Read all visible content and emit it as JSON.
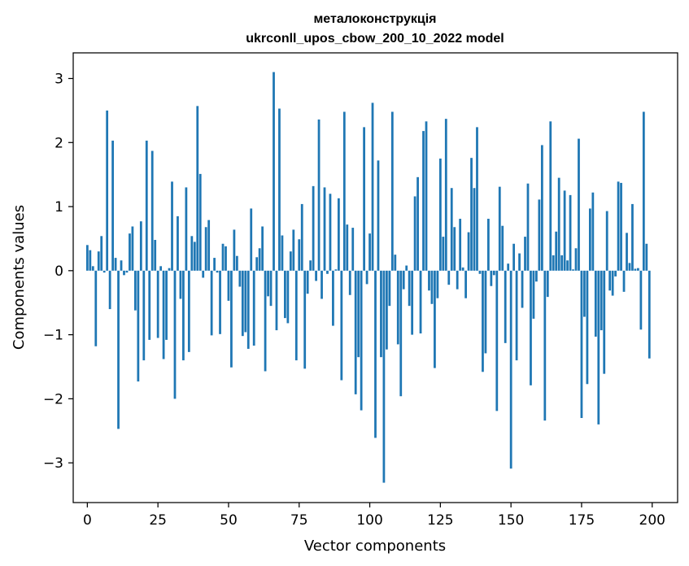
{
  "chart_data": {
    "type": "bar",
    "title": "металоконструкція",
    "subtitle": "ukrconll_upos_cbow_200_10_2022 model",
    "xlabel": "Vector components",
    "ylabel": "Components values",
    "xlim": [
      -5,
      209
    ],
    "ylim": [
      -3.62,
      3.4
    ],
    "xticks": [
      0,
      25,
      50,
      75,
      100,
      125,
      150,
      175,
      200
    ],
    "yticks": [
      -3,
      -2,
      -1,
      0,
      1,
      2,
      3
    ],
    "grid": false,
    "bar_color": "#1f77b4",
    "x": [
      0,
      1,
      2,
      3,
      4,
      5,
      6,
      7,
      8,
      9,
      10,
      11,
      12,
      13,
      14,
      15,
      16,
      17,
      18,
      19,
      20,
      21,
      22,
      23,
      24,
      25,
      26,
      27,
      28,
      29,
      30,
      31,
      32,
      33,
      34,
      35,
      36,
      37,
      38,
      39,
      40,
      41,
      42,
      43,
      44,
      45,
      46,
      47,
      48,
      49,
      50,
      51,
      52,
      53,
      54,
      55,
      56,
      57,
      58,
      59,
      60,
      61,
      62,
      63,
      64,
      65,
      66,
      67,
      68,
      69,
      70,
      71,
      72,
      73,
      74,
      75,
      76,
      77,
      78,
      79,
      80,
      81,
      82,
      83,
      84,
      85,
      86,
      87,
      88,
      89,
      90,
      91,
      92,
      93,
      94,
      95,
      96,
      97,
      98,
      99,
      100,
      101,
      102,
      103,
      104,
      105,
      106,
      107,
      108,
      109,
      110,
      111,
      112,
      113,
      114,
      115,
      116,
      117,
      118,
      119,
      120,
      121,
      122,
      123,
      124,
      125,
      126,
      127,
      128,
      129,
      130,
      131,
      132,
      133,
      134,
      135,
      136,
      137,
      138,
      139,
      140,
      141,
      142,
      143,
      144,
      145,
      146,
      147,
      148,
      149,
      150,
      151,
      152,
      153,
      154,
      155,
      156,
      157,
      158,
      159,
      160,
      161,
      162,
      163,
      164,
      165,
      166,
      167,
      168,
      169,
      170,
      171,
      172,
      173,
      174,
      175,
      176,
      177,
      178,
      179,
      180,
      181,
      182,
      183,
      184,
      185,
      186,
      187,
      188,
      189,
      190,
      191,
      192,
      193,
      194,
      195,
      196,
      197,
      198,
      199
    ],
    "values": [
      0.4,
      0.32,
      0.07,
      -1.18,
      0.3,
      0.54,
      -0.03,
      2.5,
      -0.6,
      2.03,
      0.2,
      -2.47,
      0.16,
      -0.07,
      -0.03,
      0.58,
      0.69,
      -0.62,
      -1.73,
      0.77,
      -1.4,
      2.03,
      -1.08,
      1.87,
      0.48,
      -1.05,
      0.07,
      -1.38,
      -1.08,
      0.04,
      1.39,
      -2.0,
      0.85,
      -0.44,
      -1.4,
      1.3,
      -1.27,
      0.54,
      0.45,
      2.57,
      1.51,
      -0.11,
      0.68,
      0.79,
      -1.01,
      0.2,
      -0.03,
      -0.99,
      0.42,
      0.38,
      -0.47,
      -1.51,
      0.64,
      0.23,
      -0.25,
      -1.02,
      -0.96,
      -1.22,
      0.97,
      -1.17,
      0.21,
      0.35,
      0.69,
      -1.57,
      -0.4,
      -0.55,
      3.1,
      -0.93,
      2.53,
      0.55,
      -0.74,
      -0.82,
      0.3,
      0.64,
      -1.4,
      0.49,
      1.04,
      -1.53,
      -0.36,
      0.16,
      1.32,
      -0.16,
      2.36,
      -0.44,
      1.3,
      -0.05,
      1.2,
      -0.86,
      0.02,
      1.13,
      -1.71,
      2.48,
      0.72,
      -0.38,
      0.67,
      -1.93,
      -1.35,
      -2.18,
      2.24,
      -0.21,
      0.58,
      2.62,
      -2.61,
      1.72,
      -1.35,
      -3.31,
      -1.23,
      -0.55,
      2.48,
      0.25,
      -1.15,
      -1.96,
      -0.29,
      0.08,
      -0.55,
      -1.0,
      1.16,
      1.46,
      -0.98,
      2.18,
      2.33,
      -0.31,
      -0.52,
      -1.52,
      -0.43,
      1.75,
      0.53,
      2.37,
      -0.22,
      1.29,
      0.68,
      -0.29,
      0.81,
      0.05,
      -0.43,
      0.6,
      1.76,
      1.29,
      2.24,
      -0.05,
      -1.58,
      -1.29,
      0.81,
      -0.24,
      -0.07,
      -2.19,
      1.31,
      0.7,
      -1.13,
      0.11,
      -3.09,
      0.42,
      -1.4,
      0.27,
      -0.58,
      0.53,
      1.36,
      -1.79,
      -0.75,
      -0.17,
      1.11,
      1.96,
      -2.34,
      -0.41,
      2.33,
      0.24,
      0.61,
      1.45,
      0.24,
      1.25,
      0.16,
      1.18,
      0.02,
      0.35,
      2.06,
      -2.3,
      -0.72,
      -1.77,
      0.97,
      1.22,
      -1.03,
      -2.4,
      -0.93,
      -1.61,
      0.93,
      -0.31,
      -0.39,
      -0.09,
      1.39,
      1.37,
      -0.33,
      0.59,
      0.12,
      1.04,
      0.03,
      0.04,
      -0.92,
      2.48,
      0.42,
      -1.37
    ]
  }
}
